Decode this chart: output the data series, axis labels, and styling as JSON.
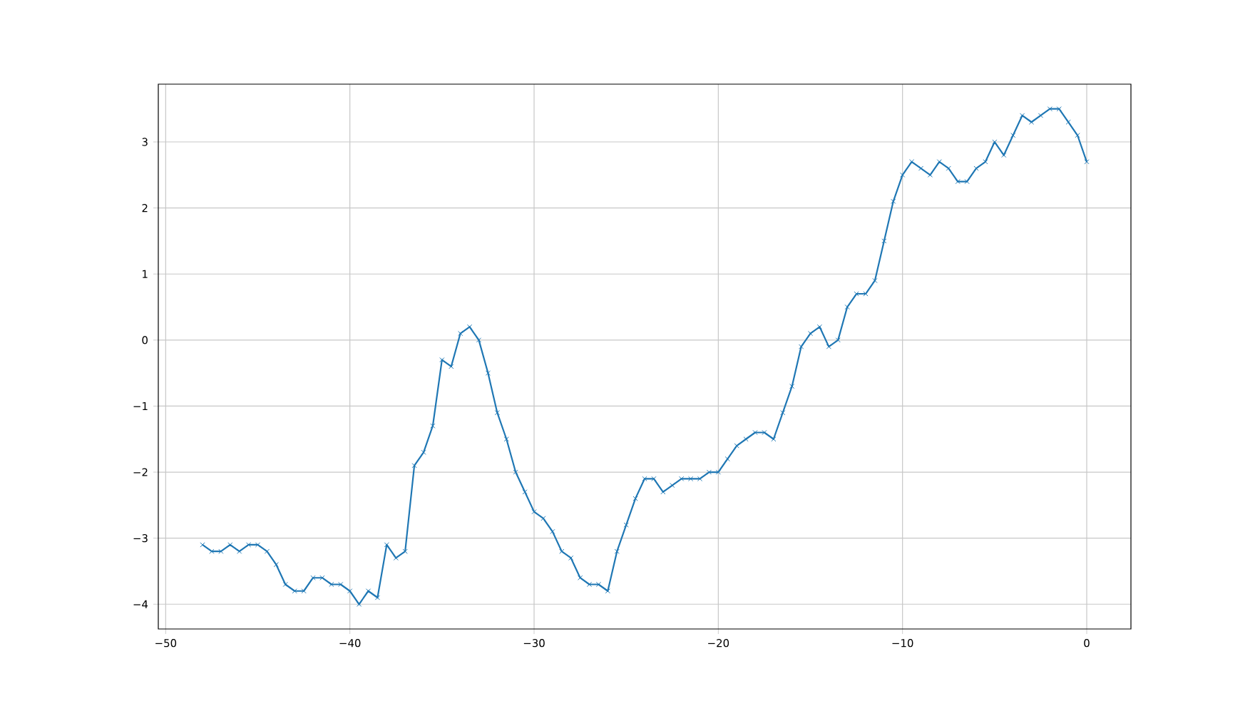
{
  "chart_data": {
    "type": "line",
    "marker": "cross",
    "line_style": "solid",
    "grid": true,
    "x": [
      -48,
      -47.5,
      -47,
      -46.5,
      -46,
      -45.5,
      -45,
      -44.5,
      -44,
      -43.5,
      -43,
      -42.5,
      -42,
      -41.5,
      -41,
      -40.5,
      -40,
      -39.5,
      -39,
      -38.5,
      -38,
      -37.5,
      -37,
      -36.5,
      -36,
      -35.5,
      -35,
      -34.5,
      -34,
      -33.5,
      -33,
      -32.5,
      -32,
      -31.5,
      -31,
      -30.5,
      -30,
      -29.5,
      -29,
      -28.5,
      -28,
      -27.5,
      -27,
      -26.5,
      -26,
      -25.5,
      -25,
      -24.5,
      -24,
      -23.5,
      -23,
      -22.5,
      -22,
      -21.5,
      -21,
      -20.5,
      -20,
      -19.5,
      -19,
      -18.5,
      -18,
      -17.5,
      -17,
      -16.5,
      -16,
      -15.5,
      -15,
      -14.5,
      -14,
      -13.5,
      -13,
      -12.5,
      -12,
      -11.5,
      -11,
      -10.5,
      -10,
      -9.5,
      -9,
      -8.5,
      -8,
      -7.5,
      -7,
      -6.5,
      -6,
      -5.5,
      -5,
      -4.5,
      -4,
      -3.5,
      -3,
      -2.5,
      -2,
      -1.5,
      -1,
      -0.5,
      0
    ],
    "series": [
      {
        "color": "#1f77b4",
        "values": [
          -3.1,
          -3.2,
          -3.2,
          -3.1,
          -3.2,
          -3.1,
          -3.1,
          -3.2,
          -3.4,
          -3.7,
          -3.8,
          -3.8,
          -3.6,
          -3.6,
          -3.7,
          -3.7,
          -3.8,
          -4.0,
          -3.8,
          -3.9,
          -3.1,
          -3.3,
          -3.2,
          -1.9,
          -1.7,
          -1.3,
          -0.3,
          -0.4,
          0.1,
          0.2,
          0.0,
          -0.5,
          -1.1,
          -1.5,
          -2.0,
          -2.3,
          -2.6,
          -2.7,
          -2.9,
          -3.2,
          -3.3,
          -3.6,
          -3.7,
          -3.7,
          -3.8,
          -3.2,
          -2.8,
          -2.4,
          -2.1,
          -2.1,
          -2.3,
          -2.2,
          -2.1,
          -2.1,
          -2.1,
          -2.0,
          -2.0,
          -1.8,
          -1.6,
          -1.5,
          -1.4,
          -1.4,
          -1.5,
          -1.1,
          -0.7,
          -0.1,
          0.1,
          0.2,
          -0.1,
          0.0,
          0.5,
          0.7,
          0.7,
          0.9,
          1.5,
          2.1,
          2.5,
          2.7,
          2.6,
          2.5,
          2.7,
          2.6,
          2.4,
          2.4,
          2.6,
          2.7,
          3.0,
          2.8,
          3.1,
          3.4,
          3.3,
          3.4,
          3.5,
          3.5,
          3.3,
          3.1,
          2.7
        ]
      }
    ],
    "xlim": [
      -50.4,
      2.4
    ],
    "ylim": [
      -4.375,
      3.875
    ],
    "xticks": [
      {
        "value": -50,
        "label": "−50"
      },
      {
        "value": -40,
        "label": "−40"
      },
      {
        "value": -30,
        "label": "−30"
      },
      {
        "value": -20,
        "label": "−20"
      },
      {
        "value": -10,
        "label": "−10"
      },
      0
    ],
    "yticks": [
      {
        "value": -4,
        "label": "−4"
      },
      {
        "value": -3,
        "label": "−3"
      },
      {
        "value": -2,
        "label": "−2"
      },
      {
        "value": -1,
        "label": "−1"
      },
      0,
      1,
      2,
      3
    ]
  }
}
